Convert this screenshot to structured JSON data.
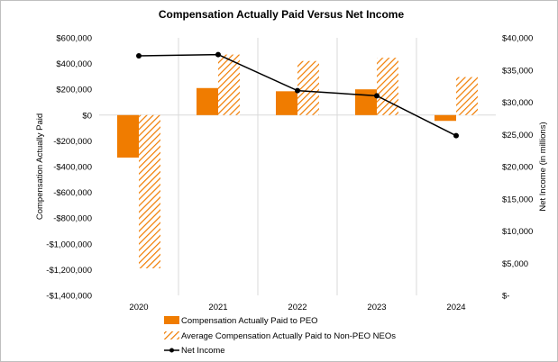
{
  "chart_data": {
    "type": "bar",
    "title": "Compensation Actually Paid Versus Net Income",
    "categories": [
      "2020",
      "2021",
      "2022",
      "2023",
      "2024"
    ],
    "y_left": {
      "label": "Compensation Actually Paid",
      "range": [
        -1400000,
        600000
      ],
      "ticks": [
        600000,
        400000,
        200000,
        0,
        -200000,
        -400000,
        -600000,
        -800000,
        -1000000,
        -1200000,
        -1400000
      ],
      "tick_labels": [
        "$600,000",
        "$400,000",
        "$200,000",
        "$0",
        "-$200,000",
        "-$400,000",
        "-$600,000",
        "-$800,000",
        "-$1,000,000",
        "-$1,200,000",
        "-$1,400,000"
      ]
    },
    "y_right": {
      "label": "Net Income (in millions)",
      "range": [
        0,
        40000
      ],
      "ticks": [
        40000,
        35000,
        30000,
        25000,
        20000,
        15000,
        10000,
        5000,
        0
      ],
      "tick_labels": [
        "$40,000",
        "$35,000",
        "$30,000",
        "$25,000",
        "$20,000",
        "$15,000",
        "$10,000",
        "$5,000",
        "$-"
      ]
    },
    "series": [
      {
        "name": "Compensation Actually Paid to PEO",
        "kind": "bar",
        "style": "solid",
        "color": "#F07C00",
        "axis": "left",
        "values": [
          -330000,
          210000,
          185000,
          200000,
          -45000
        ]
      },
      {
        "name": "Average Compensation Actually Paid to Non-PEO NEOs",
        "kind": "bar",
        "style": "hatched",
        "color": "#F07C00",
        "axis": "left",
        "values": [
          -1190000,
          470000,
          420000,
          445000,
          295000
        ]
      },
      {
        "name": "Net Income",
        "kind": "line",
        "color": "#000000",
        "axis": "right",
        "values": [
          37200,
          37400,
          31800,
          31000,
          24800
        ]
      }
    ]
  }
}
